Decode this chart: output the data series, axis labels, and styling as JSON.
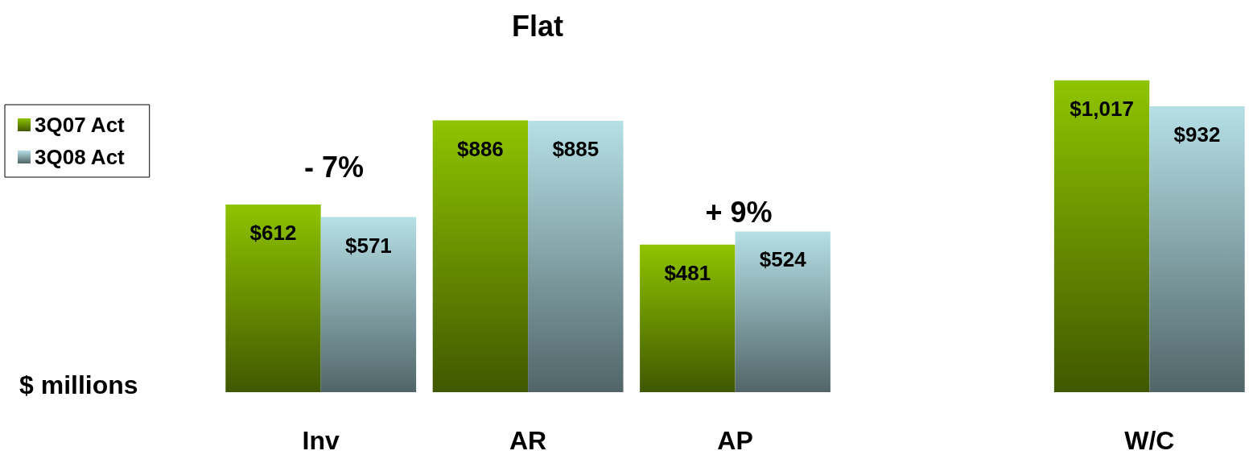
{
  "chart_data": {
    "type": "bar",
    "ylabel": "$ millions",
    "categories": [
      "Inv",
      "AR",
      "AP",
      null,
      "W/C"
    ],
    "series": [
      {
        "name": "3Q07 Act",
        "color": "#8fc400",
        "values": [
          612,
          886,
          481,
          null,
          1017
        ],
        "value_labels": [
          "$612",
          "$886",
          "$481",
          null,
          "$1,017"
        ]
      },
      {
        "name": "3Q08 Act",
        "color": "#b5e0e6",
        "values": [
          571,
          885,
          524,
          null,
          932
        ],
        "value_labels": [
          "$571",
          "$885",
          "$524",
          null,
          "$932"
        ]
      }
    ],
    "annotations": [
      "- 7%",
      "Flat",
      "+ 9%"
    ],
    "legend": "left"
  }
}
